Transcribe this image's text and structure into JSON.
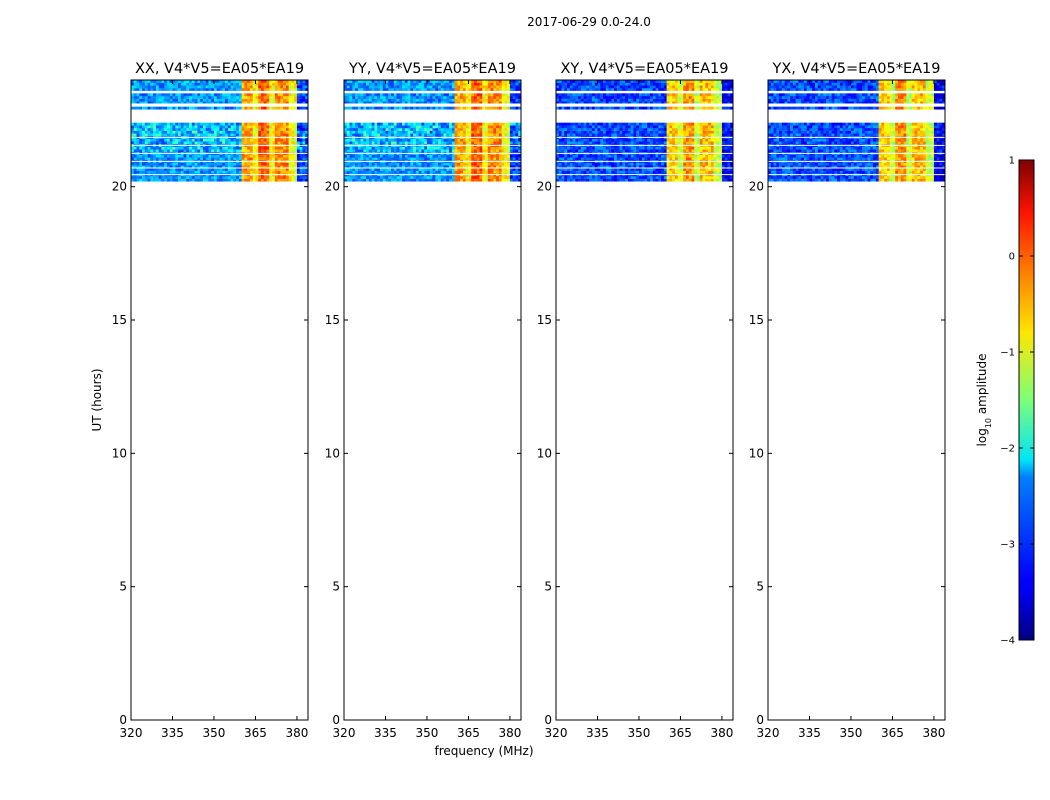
{
  "chart_data": {
    "type": "heatmap",
    "suptitle": "2017-06-29 0.0-24.0",
    "xlabel": "frequency (MHz)",
    "ylabel": "UT (hours)",
    "xlim": [
      320,
      384
    ],
    "ylim": [
      0,
      24
    ],
    "xticks": [
      320,
      335,
      350,
      365,
      380
    ],
    "yticks": [
      0,
      5,
      10,
      15,
      20
    ],
    "data_time_range_hours": [
      20.2,
      24.0
    ],
    "panels": [
      {
        "title": "XX, V4*V5=EA05*EA19",
        "pol": "XX"
      },
      {
        "title": "YY, V4*V5=EA05*EA19",
        "pol": "YY"
      },
      {
        "title": "XY, V4*V5=EA05*EA19",
        "pol": "XY"
      },
      {
        "title": "YX, V4*V5=EA05*EA19",
        "pol": "YX"
      }
    ],
    "colorbar": {
      "label_prefix": "log",
      "label_sub": "10",
      "label_suffix": " amplitude",
      "range": [
        -4,
        1
      ],
      "ticks": [
        1,
        0,
        -1,
        -2,
        -3,
        -4
      ],
      "tick_labels": [
        "1",
        "0",
        "−1",
        "−2",
        "−3",
        "−4"
      ],
      "colormap": "jet"
    },
    "band_structure_mhz": {
      "bright_block": [
        360,
        380
      ],
      "bright_strips": [
        [
          360,
          364
        ],
        [
          364,
          366
        ],
        [
          366,
          370
        ],
        [
          370,
          372
        ],
        [
          372,
          377
        ],
        [
          377,
          380
        ]
      ]
    },
    "gap_ranges_hours": [
      [
        23.45,
        23.55
      ],
      [
        23.05,
        22.95
      ],
      [
        22.85,
        22.4
      ]
    ]
  }
}
